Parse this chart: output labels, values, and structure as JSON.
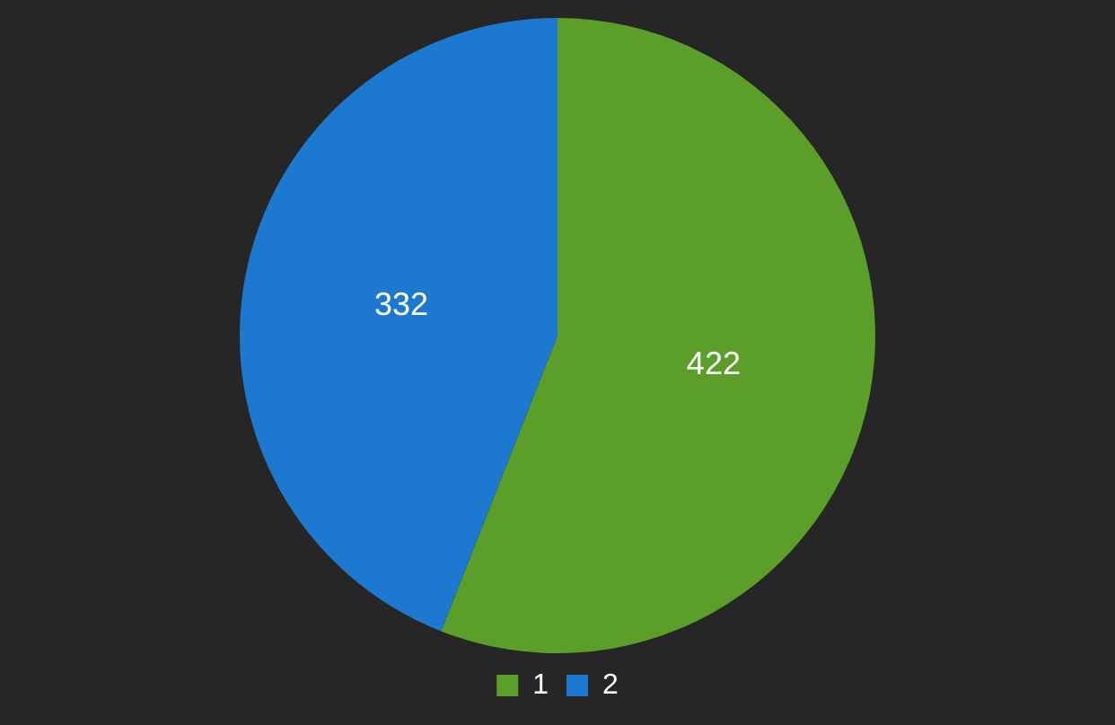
{
  "chart_data": {
    "type": "pie",
    "categories": [
      "1",
      "2"
    ],
    "values": [
      422,
      332
    ],
    "colors": [
      "#5b9e2a",
      "#1c79cf"
    ],
    "data_labels": true,
    "legend": "bottom"
  }
}
